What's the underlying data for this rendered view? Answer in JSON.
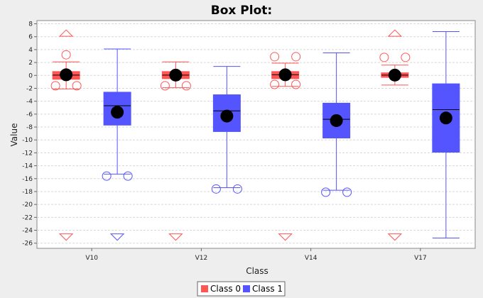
{
  "chart_data": {
    "type": "box",
    "title": "Box Plot:",
    "xlabel": "Class",
    "ylabel": "Value",
    "ylim": [
      -26.8,
      8.5
    ],
    "yticks": [
      8,
      6,
      4,
      2,
      0,
      -2,
      -4,
      -6,
      -8,
      -10,
      -12,
      -14,
      -16,
      -18,
      -20,
      -22,
      -24,
      -26
    ],
    "grid": true,
    "legend_position": "bottom-center",
    "categories": [
      "V10",
      "V12",
      "V14",
      "V17"
    ],
    "series": [
      {
        "name": "Class 0",
        "color": "#ff5555",
        "boxes": [
          {
            "category": "V10",
            "q1": -0.6,
            "median": 0.05,
            "q3": 0.6,
            "whisker_low": -2.1,
            "whisker_high": 2.1,
            "mean": 0.1,
            "outliers": [
              3.2,
              -1.6,
              -1.6
            ],
            "extreme_high": 6.5,
            "extreme_low": -25
          },
          {
            "category": "V12",
            "q1": -0.5,
            "median": 0.05,
            "q3": 0.6,
            "whisker_low": -1.9,
            "whisker_high": 2.1,
            "mean": 0.05,
            "outliers": [
              -1.6,
              -1.6
            ],
            "extreme_high": null,
            "extreme_low": -25
          },
          {
            "category": "V14",
            "q1": -0.5,
            "median": 0.1,
            "q3": 0.6,
            "whisker_low": -1.7,
            "whisker_high": 1.9,
            "mean": 0.1,
            "outliers": [
              2.9,
              2.9,
              -1.4,
              -1.4
            ],
            "extreme_high": null,
            "extreme_low": -25
          },
          {
            "category": "V17",
            "q1": -0.3,
            "median": 0.05,
            "q3": 0.4,
            "whisker_low": -1.5,
            "whisker_high": 1.6,
            "mean": 0.05,
            "outliers": [
              2.8,
              2.8
            ],
            "extreme_high": 6.5,
            "extreme_low": -25
          }
        ]
      },
      {
        "name": "Class 1",
        "color": "#5555ff",
        "boxes": [
          {
            "category": "V10",
            "q1": -7.7,
            "median": -4.7,
            "q3": -2.6,
            "whisker_low": -15.3,
            "whisker_high": 4.1,
            "mean": -5.7,
            "outliers": [
              -15.6,
              -15.6
            ],
            "extreme_high": null,
            "extreme_low": -25
          },
          {
            "category": "V12",
            "q1": -8.7,
            "median": -5.5,
            "q3": -3.0,
            "whisker_low": -17.4,
            "whisker_high": 1.4,
            "mean": -6.3,
            "outliers": [
              -17.6,
              -17.6
            ],
            "extreme_high": null,
            "extreme_low": null
          },
          {
            "category": "V14",
            "q1": -9.7,
            "median": -6.8,
            "q3": -4.3,
            "whisker_low": -17.8,
            "whisker_high": 3.5,
            "mean": -7.0,
            "outliers": [
              -18.1,
              -18.1
            ],
            "extreme_high": null,
            "extreme_low": null
          },
          {
            "category": "V17",
            "q1": -11.9,
            "median": -5.3,
            "q3": -1.3,
            "whisker_low": -25.2,
            "whisker_high": 6.8,
            "mean": -6.6,
            "outliers": [],
            "extreme_high": null,
            "extreme_low": null
          }
        ]
      }
    ]
  }
}
